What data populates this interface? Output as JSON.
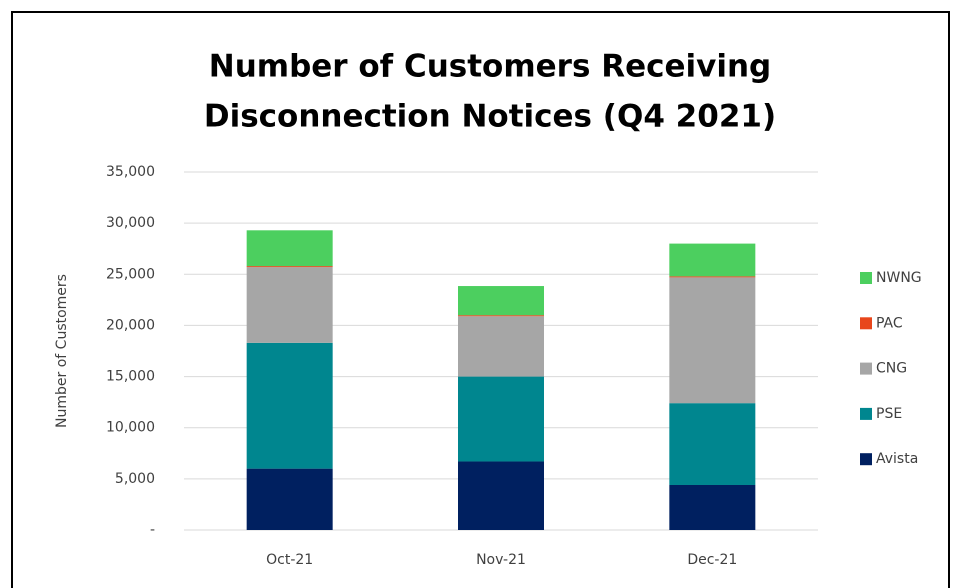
{
  "chart_data": {
    "type": "stacked_bar",
    "title": [
      "Number of Customers Receiving",
      "Disconnection  Notices (Q4 2021)"
    ],
    "y_label": "Number of Customers",
    "categories": [
      "Oct-21",
      "Nov-21",
      "Dec-21"
    ],
    "series": [
      {
        "name": "Avista",
        "color": "#002060",
        "values": [
          6000,
          6700,
          4400
        ]
      },
      {
        "name": "PSE",
        "color": "#00868f",
        "values": [
          12300,
          8300,
          8000
        ]
      },
      {
        "name": "CNG",
        "color": "#a6a6a6",
        "values": [
          7400,
          5900,
          12300
        ]
      },
      {
        "name": "PAC",
        "color": "#e8461b",
        "values": [
          100,
          100,
          100
        ]
      },
      {
        "name": "NWNG",
        "color": "#4ccf5f",
        "values": [
          3500,
          2850,
          3200
        ]
      }
    ],
    "ylim": [
      0,
      35000
    ],
    "yticks": [
      {
        "value": 0,
        "label": "-"
      },
      {
        "value": 5000,
        "label": "5,000"
      },
      {
        "value": 10000,
        "label": "10,000"
      },
      {
        "value": 15000,
        "label": "15,000"
      },
      {
        "value": 20000,
        "label": "20,000"
      },
      {
        "value": 25000,
        "label": "25,000"
      },
      {
        "value": 30000,
        "label": "30,000"
      },
      {
        "value": 35000,
        "label": "35,000"
      }
    ],
    "grid": true,
    "legend": "right"
  }
}
